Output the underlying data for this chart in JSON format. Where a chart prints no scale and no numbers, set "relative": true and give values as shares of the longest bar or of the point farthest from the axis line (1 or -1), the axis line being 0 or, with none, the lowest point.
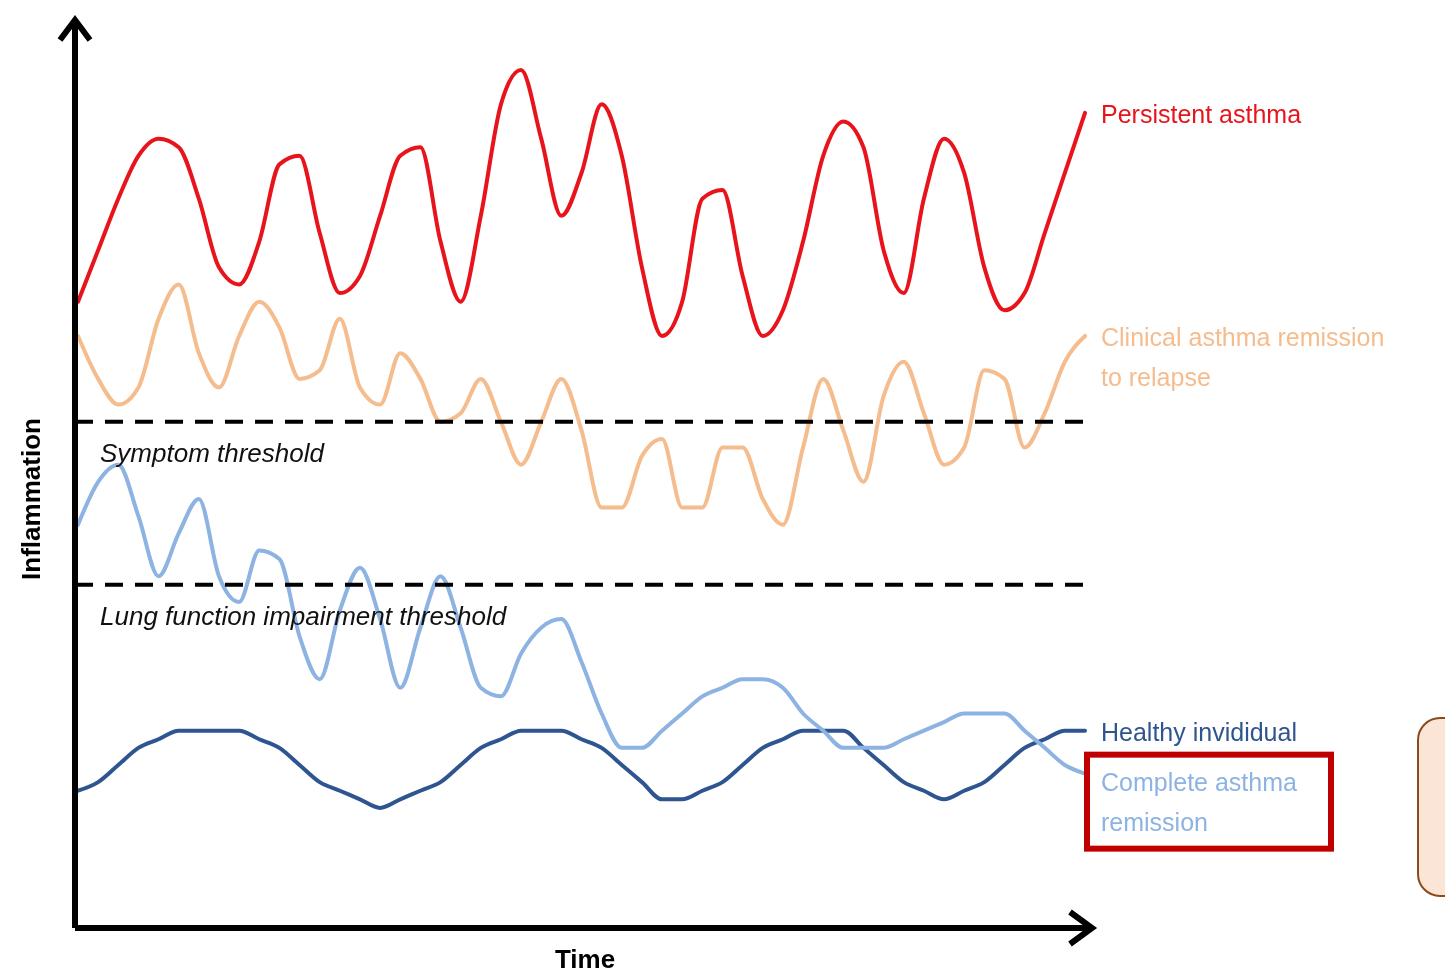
{
  "chart_data": {
    "type": "line",
    "relative": true,
    "xlabel": "Time",
    "ylabel": "Inflammation",
    "categories": [
      null,
      null,
      null,
      null,
      null,
      null,
      null,
      null,
      null,
      null,
      null,
      null,
      null,
      null,
      null,
      null,
      null,
      null,
      null,
      null,
      null,
      null,
      null,
      null,
      null,
      null,
      null,
      null,
      null,
      null,
      null,
      null,
      null,
      null,
      null,
      null,
      null,
      null,
      null,
      null,
      null,
      null,
      null,
      null,
      null,
      null,
      null,
      null,
      null,
      null,
      null
    ],
    "series": [
      {
        "name": "Persistent asthma",
        "color": "#e8141c",
        "values": [
          0.73,
          0.79,
          0.85,
          0.9,
          0.92,
          0.91,
          0.85,
          0.77,
          0.75,
          0.8,
          0.89,
          0.9,
          0.81,
          0.74,
          0.76,
          0.83,
          0.9,
          0.91,
          0.8,
          0.73,
          0.83,
          0.96,
          1,
          0.92,
          0.83,
          0.88,
          0.96,
          0.9,
          0.77,
          0.69,
          0.73,
          0.85,
          0.86,
          0.76,
          0.69,
          0.72,
          0.8,
          0.9,
          0.94,
          0.91,
          0.79,
          0.74,
          0.85,
          0.92,
          0.88,
          0.77,
          0.72,
          0.74,
          0.81,
          0.88,
          0.95
        ]
      },
      {
        "name": "Clinical asthma remission to relapse",
        "color": "#f5bc8e",
        "values": [
          0.69,
          0.64,
          0.61,
          0.63,
          0.71,
          0.75,
          0.67,
          0.63,
          0.69,
          0.73,
          0.7,
          0.64,
          0.65,
          0.71,
          0.63,
          0.61,
          0.67,
          0.64,
          0.59,
          0.6,
          0.64,
          0.59,
          0.54,
          0.59,
          0.64,
          0.58,
          0.49,
          0.49,
          0.55,
          0.57,
          0.49,
          0.49,
          0.56,
          0.56,
          0.5,
          0.47,
          0.56,
          0.64,
          0.58,
          0.52,
          0.62,
          0.66,
          0.6,
          0.54,
          0.56,
          0.65,
          0.64,
          0.56,
          0.6,
          0.66,
          0.69
        ]
      },
      {
        "name": "Healthy invididual",
        "color": "#2f5590",
        "values": [
          0.16,
          0.17,
          0.19,
          0.21,
          0.22,
          0.23,
          0.23,
          0.23,
          0.23,
          0.22,
          0.21,
          0.19,
          0.17,
          0.16,
          0.15,
          0.14,
          0.15,
          0.16,
          0.17,
          0.19,
          0.21,
          0.22,
          0.23,
          0.23,
          0.23,
          0.22,
          0.21,
          0.19,
          0.17,
          0.15,
          0.15,
          0.16,
          0.17,
          0.19,
          0.21,
          0.22,
          0.23,
          0.23,
          0.23,
          0.21,
          0.19,
          0.17,
          0.16,
          0.15,
          0.16,
          0.17,
          0.19,
          0.21,
          0.22,
          0.23,
          0.23
        ]
      },
      {
        "name": "Complete asthma remission",
        "color": "#8db3e2",
        "values": [
          0.47,
          0.52,
          0.54,
          0.48,
          0.41,
          0.46,
          0.5,
          0.41,
          0.38,
          0.44,
          0.43,
          0.34,
          0.29,
          0.37,
          0.42,
          0.36,
          0.28,
          0.35,
          0.41,
          0.35,
          0.28,
          0.27,
          0.32,
          0.35,
          0.36,
          0.31,
          0.25,
          0.21,
          0.21,
          0.23,
          0.25,
          0.27,
          0.28,
          0.29,
          0.29,
          0.28,
          0.25,
          0.23,
          0.21,
          0.21,
          0.21,
          0.22,
          0.23,
          0.24,
          0.25,
          0.25,
          0.25,
          0.23,
          0.21,
          0.19,
          0.18
        ]
      }
    ],
    "ref_lines": [
      {
        "axis": "y",
        "value": 0.59,
        "label": "Symptom threshold",
        "color": "#000000",
        "line_style": "dashed"
      },
      {
        "axis": "y",
        "value": 0.4,
        "label": "Lung function impairment threshold",
        "color": "#000000",
        "line_style": "dashed"
      }
    ]
  }
}
